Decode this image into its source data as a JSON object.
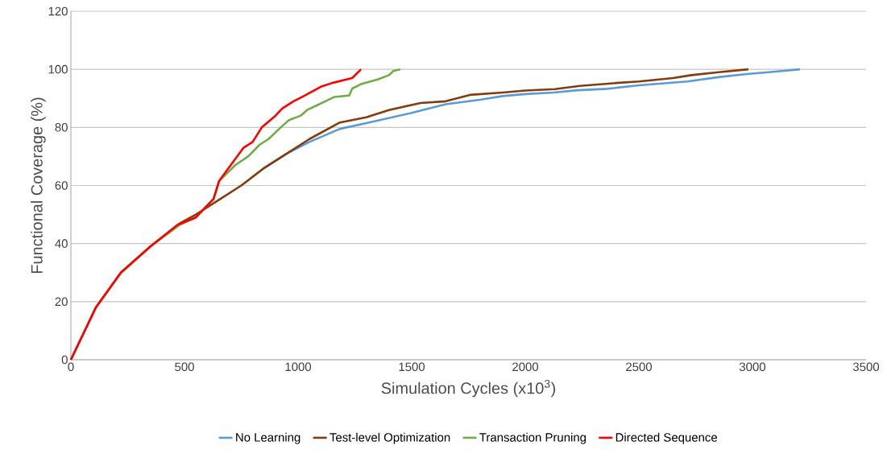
{
  "chart_data": {
    "type": "line",
    "xlabel": "Simulation Cycles (x10$^{3}$)",
    "ylabel": "Functional Coverage (%)",
    "xlim": [
      0,
      3500
    ],
    "ylim": [
      0,
      120
    ],
    "xticks": [
      0,
      500,
      1000,
      1500,
      2000,
      2500,
      3000,
      3500
    ],
    "yticks": [
      0,
      20,
      40,
      60,
      80,
      100,
      120
    ],
    "grid": "y",
    "legend": "bottom",
    "marker": "none",
    "line_style": "solid",
    "series": [
      {
        "name": "No Learning",
        "color": "#5b9bd5",
        "x": [
          850,
          950,
          1050,
          1184,
          1300,
          1500,
          1650,
          1800,
          1900,
          2000,
          2124,
          2230,
          2360,
          2500,
          2713,
          2850,
          2975,
          3100,
          3209
        ],
        "values": [
          66,
          71,
          75,
          79.5,
          81.5,
          85,
          88,
          89.5,
          90.8,
          91.5,
          92,
          92.8,
          93.3,
          94.5,
          95.8,
          97.3,
          98.4,
          99.2,
          100
        ]
      },
      {
        "name": "Test-level Optimization",
        "color": "#843c0c",
        "x": [
          0,
          110,
          220,
          350,
          480,
          550,
          650,
          750,
          850,
          950,
          1050,
          1184,
          1300,
          1400,
          1539,
          1650,
          1756,
          1900,
          2000,
          2130,
          2240,
          2400,
          2500,
          2650,
          2730,
          2850,
          2982
        ],
        "values": [
          0,
          18,
          30,
          39,
          47,
          50,
          55,
          60,
          66,
          71,
          76,
          81.7,
          83.5,
          86,
          88.4,
          89,
          91.2,
          92,
          92.7,
          93.2,
          94.3,
          95.3,
          95.8,
          97,
          98,
          99,
          100
        ]
      },
      {
        "name": "Transaction Pruning",
        "color": "#70ad47",
        "x": [
          220,
          350,
          480,
          550,
          628,
          652,
          723,
          780,
          830,
          870,
          929,
          960,
          1010,
          1040,
          1080,
          1120,
          1160,
          1225,
          1238,
          1280,
          1350,
          1400,
          1420,
          1450
        ],
        "values": [
          30,
          39,
          46.5,
          49,
          55.4,
          61.5,
          67,
          70,
          74,
          76,
          80.4,
          82.5,
          84,
          86,
          87.5,
          89,
          90.5,
          91,
          93.4,
          95,
          96.5,
          98,
          99.5,
          100
        ]
      },
      {
        "name": "Directed Sequence",
        "color": "#ff0000",
        "x": [
          0,
          110,
          220,
          350,
          470,
          550,
          628,
          652,
          760,
          800,
          840,
          900,
          930,
          980,
          1030,
          1100,
          1150,
          1238,
          1277
        ],
        "values": [
          0,
          18,
          30,
          39,
          46.5,
          49,
          55.4,
          61.5,
          73,
          75,
          80,
          84,
          86.5,
          89,
          91,
          94,
          95.3,
          97,
          100
        ]
      }
    ]
  }
}
